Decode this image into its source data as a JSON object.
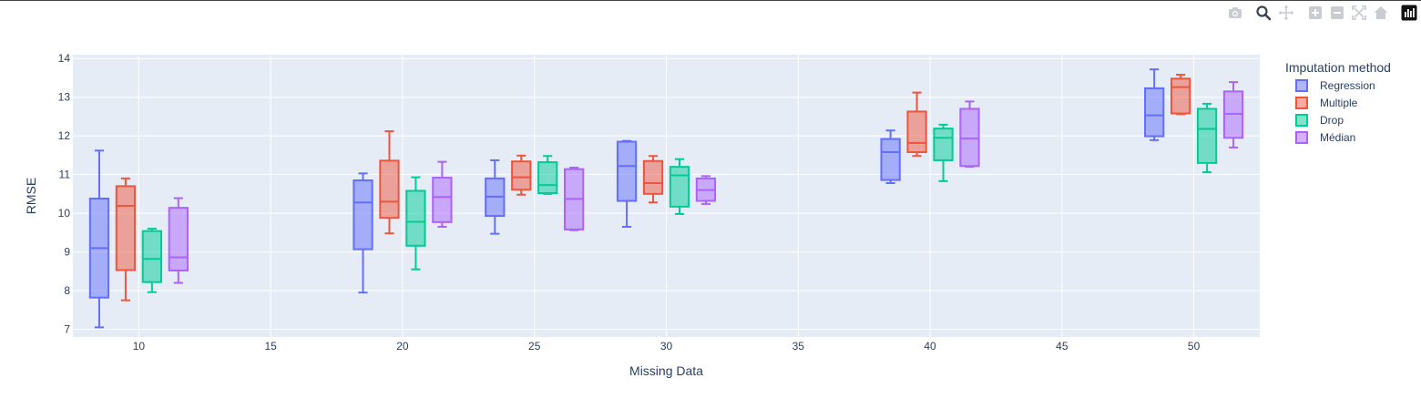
{
  "modebar": {
    "icons": [
      "camera-icon",
      "zoom-icon",
      "pan-icon",
      "zoom-in-icon",
      "zoom-out-icon",
      "autoscale-icon",
      "home-icon",
      "plotly-logo-icon"
    ]
  },
  "chart_data": {
    "type": "box",
    "xlabel": "Missing Data",
    "ylabel": "RMSE",
    "xlim": [
      7.5,
      52.5
    ],
    "ylim": [
      6.8,
      14.1
    ],
    "xticks": [
      10,
      15,
      20,
      25,
      30,
      35,
      40,
      45,
      50
    ],
    "yticks": [
      7,
      8,
      9,
      10,
      11,
      12,
      13,
      14
    ],
    "grid": true,
    "legend_title": "Imputation method",
    "legend_position": "top-right",
    "categories": [
      10,
      20,
      25,
      30,
      40,
      50
    ],
    "series": [
      {
        "name": "Regression",
        "color": "#636efa",
        "boxes": [
          {
            "x": 10,
            "min": 7.05,
            "q1": 7.82,
            "median": 9.1,
            "q3": 10.38,
            "max": 11.62
          },
          {
            "x": 20,
            "min": 7.95,
            "q1": 9.07,
            "median": 10.28,
            "q3": 10.85,
            "max": 11.03
          },
          {
            "x": 25,
            "min": 9.47,
            "q1": 9.93,
            "median": 10.43,
            "q3": 10.9,
            "max": 11.37
          },
          {
            "x": 30,
            "min": 9.65,
            "q1": 10.32,
            "median": 11.22,
            "q3": 11.85,
            "max": 11.87
          },
          {
            "x": 40,
            "min": 10.78,
            "q1": 10.86,
            "median": 11.58,
            "q3": 11.92,
            "max": 12.14
          },
          {
            "x": 50,
            "min": 11.89,
            "q1": 11.99,
            "median": 12.53,
            "q3": 13.23,
            "max": 13.72
          }
        ]
      },
      {
        "name": "Multiple",
        "color": "#ef553b",
        "boxes": [
          {
            "x": 10,
            "min": 7.75,
            "q1": 8.53,
            "median": 10.19,
            "q3": 10.7,
            "max": 10.9
          },
          {
            "x": 20,
            "min": 9.48,
            "q1": 9.88,
            "median": 10.3,
            "q3": 11.36,
            "max": 12.12
          },
          {
            "x": 25,
            "min": 10.48,
            "q1": 10.61,
            "median": 10.93,
            "q3": 11.34,
            "max": 11.49
          },
          {
            "x": 30,
            "min": 10.28,
            "q1": 10.5,
            "median": 10.78,
            "q3": 11.35,
            "max": 11.48
          },
          {
            "x": 40,
            "min": 11.48,
            "q1": 11.58,
            "median": 11.82,
            "q3": 12.63,
            "max": 13.12
          },
          {
            "x": 50,
            "min": 12.56,
            "q1": 12.58,
            "median": 13.26,
            "q3": 13.48,
            "max": 13.58
          }
        ]
      },
      {
        "name": "Drop",
        "color": "#00cc96",
        "boxes": [
          {
            "x": 10,
            "min": 7.96,
            "q1": 8.22,
            "median": 8.82,
            "q3": 9.54,
            "max": 9.6
          },
          {
            "x": 20,
            "min": 8.55,
            "q1": 9.16,
            "median": 9.78,
            "q3": 10.58,
            "max": 10.93
          },
          {
            "x": 25,
            "min": 10.5,
            "q1": 10.52,
            "median": 10.73,
            "q3": 11.32,
            "max": 11.48
          },
          {
            "x": 30,
            "min": 9.98,
            "q1": 10.17,
            "median": 10.98,
            "q3": 11.2,
            "max": 11.4
          },
          {
            "x": 40,
            "min": 10.83,
            "q1": 11.37,
            "median": 11.95,
            "q3": 12.19,
            "max": 12.29
          },
          {
            "x": 50,
            "min": 11.06,
            "q1": 11.3,
            "median": 12.18,
            "q3": 12.7,
            "max": 12.83
          }
        ]
      },
      {
        "name": "Médian",
        "color": "#ab63fa",
        "boxes": [
          {
            "x": 10,
            "min": 8.2,
            "q1": 8.52,
            "median": 8.86,
            "q3": 10.14,
            "max": 10.39
          },
          {
            "x": 20,
            "min": 9.65,
            "q1": 9.77,
            "median": 10.42,
            "q3": 10.92,
            "max": 11.33
          },
          {
            "x": 25,
            "min": 9.56,
            "q1": 9.58,
            "median": 10.37,
            "q3": 11.14,
            "max": 11.18
          },
          {
            "x": 30,
            "min": 10.24,
            "q1": 10.32,
            "median": 10.6,
            "q3": 10.9,
            "max": 10.96
          },
          {
            "x": 40,
            "min": 11.2,
            "q1": 11.22,
            "median": 11.93,
            "q3": 12.7,
            "max": 12.89
          },
          {
            "x": 50,
            "min": 11.7,
            "q1": 11.95,
            "median": 12.57,
            "q3": 13.15,
            "max": 13.39
          }
        ]
      }
    ]
  }
}
